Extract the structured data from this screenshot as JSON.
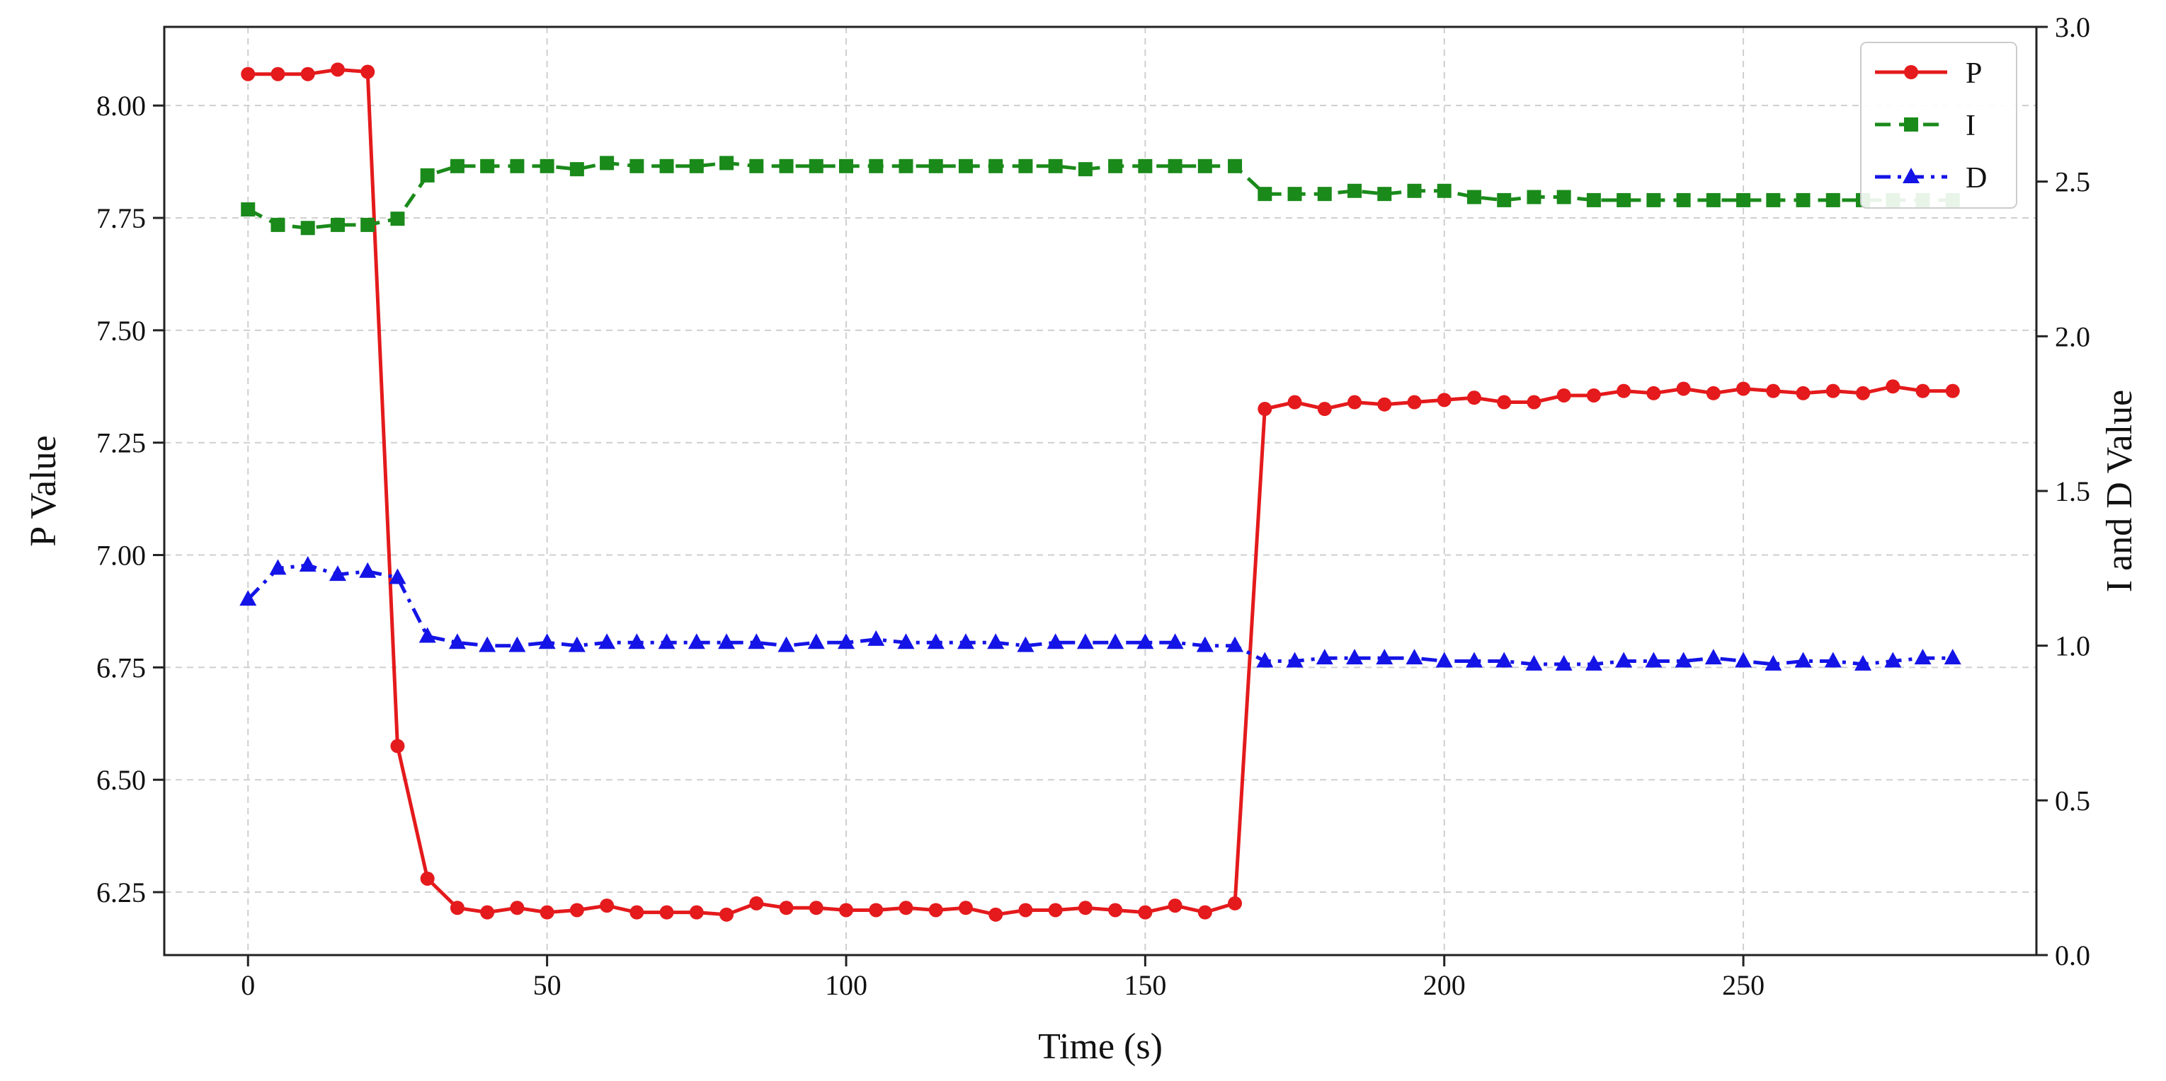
{
  "chart_data": {
    "type": "line",
    "title": "",
    "xlabel": "Time (s)",
    "ylabel_left": "P Value",
    "ylabel_right": "I and D Value",
    "xlim": [
      -14,
      299
    ],
    "ylim_left": [
      6.11,
      8.175
    ],
    "ylim_right": [
      0.0,
      3.0
    ],
    "xticks": [
      0,
      50,
      100,
      150,
      200,
      250
    ],
    "xtick_labels": [
      "0",
      "50",
      "100",
      "150",
      "200",
      "250"
    ],
    "yticks_left": [
      6.25,
      6.5,
      6.75,
      7.0,
      7.25,
      7.5,
      7.75,
      8.0
    ],
    "ytick_labels_left": [
      "6.25",
      "6.50",
      "6.75",
      "7.00",
      "7.25",
      "7.50",
      "7.75",
      "8.00"
    ],
    "yticks_right": [
      0.0,
      0.5,
      1.0,
      1.5,
      2.0,
      2.5,
      3.0
    ],
    "ytick_labels_right": [
      "0.0",
      "0.5",
      "1.0",
      "1.5",
      "2.0",
      "2.5",
      "3.0"
    ],
    "grid": true,
    "legend_position": "top-right",
    "x": [
      0,
      5,
      10,
      15,
      20,
      25,
      30,
      35,
      40,
      45,
      50,
      55,
      60,
      65,
      70,
      75,
      80,
      85,
      90,
      95,
      100,
      105,
      110,
      115,
      120,
      125,
      130,
      135,
      140,
      145,
      150,
      155,
      160,
      165,
      170,
      175,
      180,
      185,
      190,
      195,
      200,
      205,
      210,
      215,
      220,
      225,
      230,
      235,
      240,
      245,
      250,
      255,
      260,
      265,
      270,
      275,
      280,
      285
    ],
    "series": [
      {
        "name": "P",
        "axis": "left",
        "color": "#e41a1c",
        "marker": "circle",
        "linestyle": "solid",
        "values": [
          8.07,
          8.07,
          8.07,
          8.08,
          8.075,
          6.575,
          6.28,
          6.215,
          6.205,
          6.215,
          6.205,
          6.21,
          6.22,
          6.205,
          6.205,
          6.205,
          6.2,
          6.225,
          6.215,
          6.215,
          6.21,
          6.21,
          6.215,
          6.21,
          6.215,
          6.2,
          6.21,
          6.21,
          6.215,
          6.21,
          6.205,
          6.22,
          6.205,
          6.225,
          7.325,
          7.34,
          7.325,
          7.34,
          7.335,
          7.34,
          7.345,
          7.35,
          7.34,
          7.34,
          7.355,
          7.355,
          7.365,
          7.36,
          7.37,
          7.36,
          7.37,
          7.365,
          7.36,
          7.365,
          7.36,
          7.375,
          7.365,
          7.365
        ]
      },
      {
        "name": "I",
        "axis": "right",
        "color": "#1a8a1a",
        "marker": "square",
        "linestyle": "dashed",
        "values": [
          2.41,
          2.36,
          2.35,
          2.36,
          2.36,
          2.38,
          2.52,
          2.55,
          2.55,
          2.55,
          2.55,
          2.54,
          2.56,
          2.55,
          2.55,
          2.55,
          2.56,
          2.55,
          2.55,
          2.55,
          2.55,
          2.55,
          2.55,
          2.55,
          2.55,
          2.55,
          2.55,
          2.55,
          2.54,
          2.55,
          2.55,
          2.55,
          2.55,
          2.55,
          2.46,
          2.46,
          2.46,
          2.47,
          2.46,
          2.47,
          2.47,
          2.45,
          2.44,
          2.45,
          2.45,
          2.44,
          2.44,
          2.44,
          2.44,
          2.44,
          2.44,
          2.44,
          2.44,
          2.44,
          2.44,
          2.44,
          2.44,
          2.44
        ]
      },
      {
        "name": "D",
        "axis": "right",
        "color": "#1414e6",
        "marker": "triangle",
        "linestyle": "dashdot",
        "values": [
          1.15,
          1.25,
          1.26,
          1.23,
          1.24,
          1.22,
          1.03,
          1.01,
          1.0,
          1.0,
          1.01,
          1.0,
          1.01,
          1.01,
          1.01,
          1.01,
          1.01,
          1.01,
          1.0,
          1.01,
          1.01,
          1.02,
          1.01,
          1.01,
          1.01,
          1.01,
          1.0,
          1.01,
          1.01,
          1.01,
          1.01,
          1.01,
          1.0,
          1.0,
          0.95,
          0.95,
          0.96,
          0.96,
          0.96,
          0.96,
          0.95,
          0.95,
          0.95,
          0.94,
          0.94,
          0.94,
          0.95,
          0.95,
          0.95,
          0.96,
          0.95,
          0.94,
          0.95,
          0.95,
          0.94,
          0.95,
          0.96,
          0.96
        ]
      }
    ]
  }
}
